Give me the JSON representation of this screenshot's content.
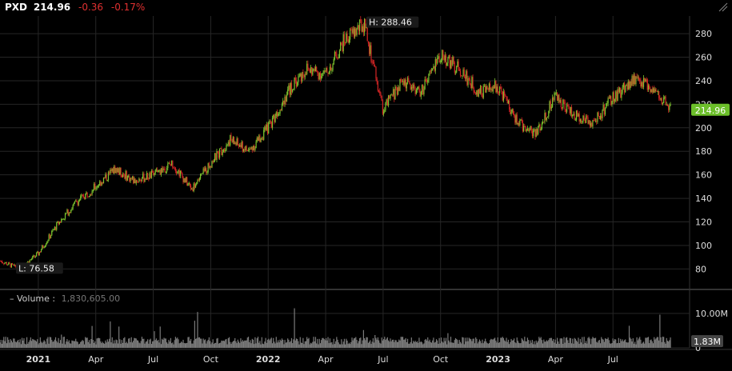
{
  "header": {
    "symbol": "PXD",
    "price": "214.96",
    "change": "-0.36",
    "change_pct": "-0.17%"
  },
  "volume_panel": {
    "label": "Volume",
    "separator": ":",
    "value": "1,830,605.00",
    "axis_labels": [
      "10.00M",
      "0"
    ],
    "last_label": "1.83M"
  },
  "colors": {
    "background": "#000000",
    "up": "#7dc42e",
    "down": "#d42525",
    "grid": "#262626",
    "volume": "#7a7a7a",
    "last_price_bg": "#6cbf2a",
    "header_change": "#e03030"
  },
  "chart_data": {
    "type": "candlestick",
    "symbol": "PXD",
    "price_axis": {
      "ticks": [
        80,
        100,
        120,
        140,
        160,
        180,
        200,
        220,
        240,
        260,
        280
      ],
      "range": [
        66,
        295
      ],
      "position": "right"
    },
    "time_axis": {
      "labels": [
        "2021",
        "Apr",
        "Jul",
        "Oct",
        "2022",
        "Apr",
        "Jul",
        "Oct",
        "2023",
        "Apr",
        "Jul"
      ],
      "dates": [
        "2021-01",
        "2021-04",
        "2021-07",
        "2021-10",
        "2022-01",
        "2022-04",
        "2022-07",
        "2022-10",
        "2023-01",
        "2023-04",
        "2023-07"
      ],
      "bold": [
        "2021",
        "2022",
        "2023"
      ],
      "start": "2020-11",
      "end": "2023-10"
    },
    "high_marker": {
      "label": "H: 288.46",
      "value": 288.46,
      "date": "2022-06"
    },
    "low_marker": {
      "label": "L: 76.58",
      "value": 76.58,
      "date": "2020-11"
    },
    "last_price": {
      "label": "214.96",
      "value": 214.96
    },
    "close_path": [
      [
        "2020-11",
        87
      ],
      [
        "2020-12",
        80
      ],
      [
        "2021-01",
        93
      ],
      [
        "2021-02",
        118
      ],
      [
        "2021-03",
        137
      ],
      [
        "2021-04",
        150
      ],
      [
        "2021-05",
        165
      ],
      [
        "2021-06",
        155
      ],
      [
        "2021-07",
        160
      ],
      [
        "2021-08",
        170
      ],
      [
        "2021-09",
        148
      ],
      [
        "2021-10",
        170
      ],
      [
        "2021-11",
        190
      ],
      [
        "2021-12",
        180
      ],
      [
        "2022-01",
        200
      ],
      [
        "2022-02",
        230
      ],
      [
        "2022-03",
        250
      ],
      [
        "2022-04",
        245
      ],
      [
        "2022-05",
        275
      ],
      [
        "2022-06",
        288
      ],
      [
        "2022-07",
        215
      ],
      [
        "2022-08",
        240
      ],
      [
        "2022-09",
        230
      ],
      [
        "2022-10",
        262
      ],
      [
        "2022-11",
        250
      ],
      [
        "2022-12",
        230
      ],
      [
        "2023-01",
        235
      ],
      [
        "2023-02",
        205
      ],
      [
        "2023-03",
        195
      ],
      [
        "2023-04",
        228
      ],
      [
        "2023-05",
        210
      ],
      [
        "2023-06",
        205
      ],
      [
        "2023-07",
        225
      ],
      [
        "2023-08",
        240
      ],
      [
        "2023-09",
        235
      ],
      [
        "2023-10",
        215
      ]
    ],
    "volume": {
      "axis_max": 10000000,
      "typical": 2500000,
      "last": 1830605
    },
    "grid": true
  }
}
